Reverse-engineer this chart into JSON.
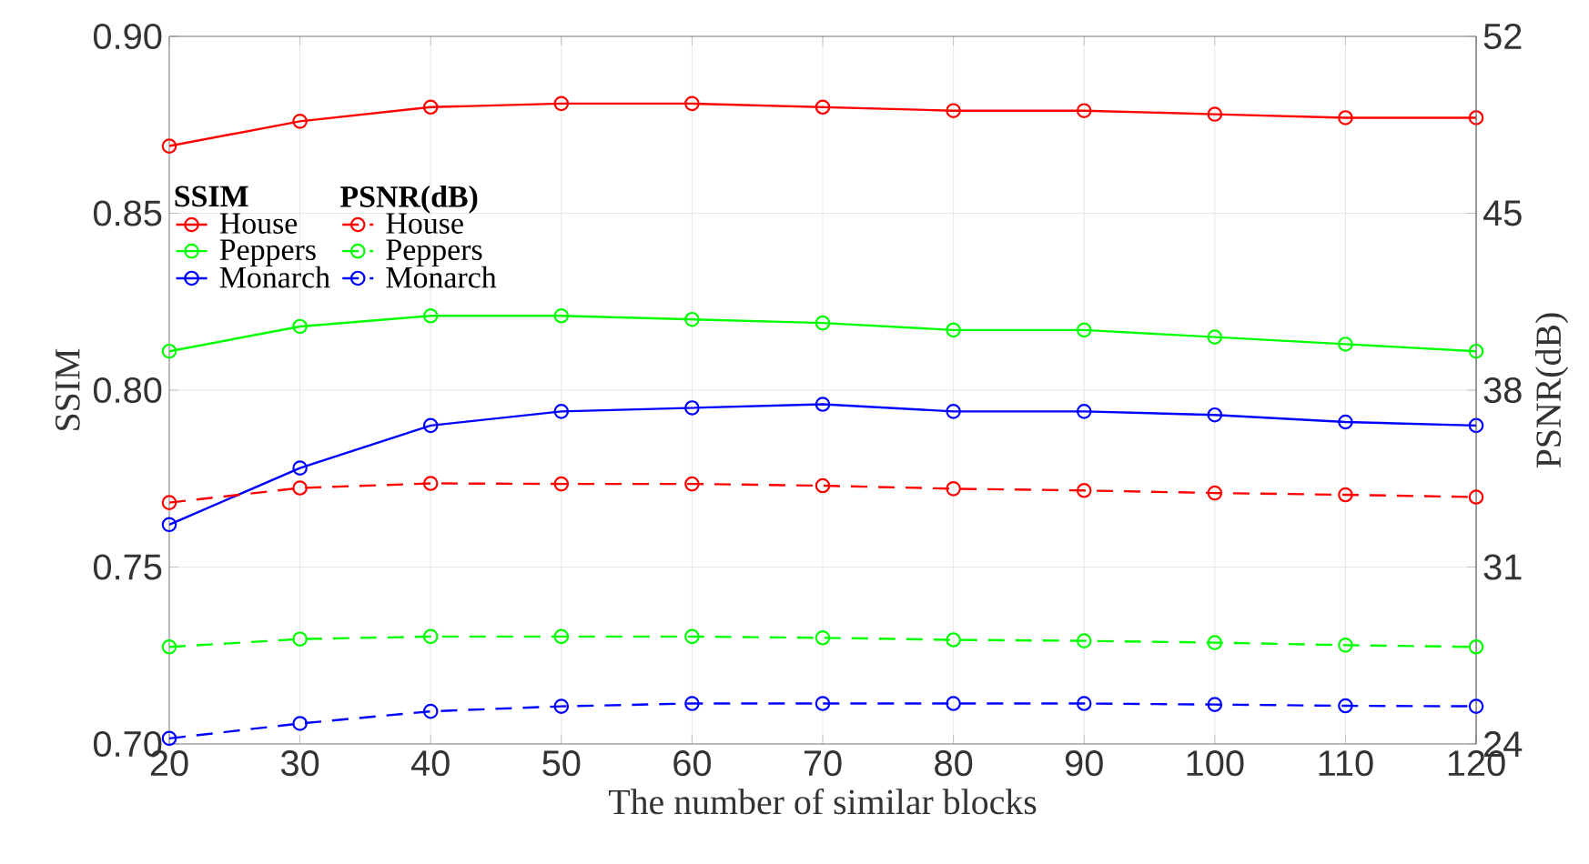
{
  "chart_data": {
    "type": "line",
    "xlabel": "The number of similar blocks",
    "ylabel": "SSIM",
    "y2label": "PSNR(dB)",
    "annotations": [
      "SSIM",
      "PSNR(dB)"
    ],
    "x": [
      20,
      30,
      40,
      50,
      60,
      70,
      80,
      90,
      100,
      110,
      120
    ],
    "xlim": [
      20,
      120
    ],
    "xticks": [
      20,
      30,
      40,
      50,
      60,
      70,
      80,
      90,
      100,
      110,
      120
    ],
    "ylim": [
      0.7,
      0.9
    ],
    "yticks": [
      {
        "value": 0.7,
        "label": "0.70"
      },
      0.75,
      {
        "value": 0.8,
        "label": "0.80"
      },
      0.85,
      {
        "value": 0.9,
        "label": "0.90"
      }
    ],
    "y2lim": [
      24,
      52
    ],
    "y2ticks": [
      24,
      31,
      38,
      45,
      52
    ],
    "grid": true,
    "legend": "top left",
    "marker": "circle",
    "series": [
      {
        "name": "House",
        "color": "#ff0000",
        "line_style": "solid",
        "values": [
          0.869,
          0.876,
          0.88,
          0.881,
          0.881,
          0.88,
          0.879,
          0.879,
          0.878,
          0.877,
          0.877
        ]
      },
      {
        "name": "Peppers",
        "color": "#00ff00",
        "line_style": "solid",
        "values": [
          0.811,
          0.818,
          0.821,
          0.821,
          0.82,
          0.819,
          0.817,
          0.817,
          0.815,
          0.813,
          0.811
        ]
      },
      {
        "name": "Monarch",
        "color": "#0000ff",
        "line_style": "solid",
        "values": [
          0.762,
          0.778,
          0.79,
          0.794,
          0.795,
          0.796,
          0.794,
          0.794,
          0.793,
          0.791,
          0.79
        ]
      },
      {
        "name": "House",
        "color": "#ff0000",
        "line_style": "dashed",
        "axis": "y2",
        "values": [
          33.55,
          34.13,
          34.31,
          34.29,
          34.29,
          34.22,
          34.1,
          34.03,
          33.93,
          33.86,
          33.77
        ]
      },
      {
        "name": "Peppers",
        "color": "#00ff00",
        "line_style": "dashed",
        "axis": "y2",
        "values": [
          27.84,
          28.15,
          28.25,
          28.25,
          28.25,
          28.2,
          28.12,
          28.08,
          28.01,
          27.91,
          27.84
        ]
      },
      {
        "name": "Monarch",
        "color": "#0000ff",
        "line_style": "dashed",
        "axis": "y2",
        "values": [
          24.22,
          24.81,
          25.29,
          25.49,
          25.6,
          25.6,
          25.6,
          25.6,
          25.56,
          25.51,
          25.49
        ]
      }
    ]
  }
}
